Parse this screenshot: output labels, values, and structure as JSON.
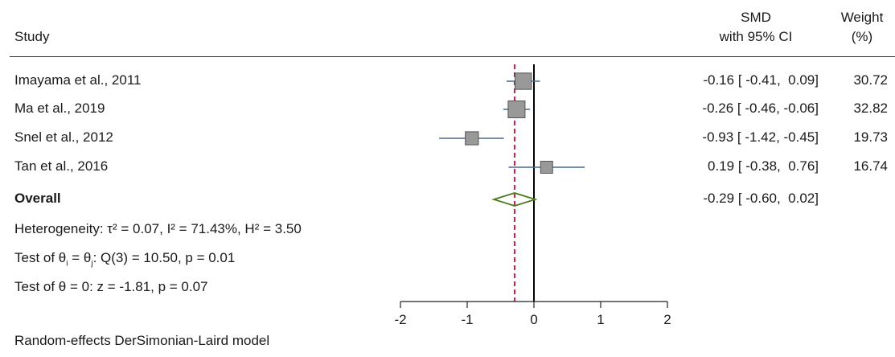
{
  "header": {
    "study_label": "Study",
    "smd_label_line1": "SMD",
    "smd_label_line2": "with 95% CI",
    "weight_label_line1": "Weight",
    "weight_label_line2": "(%)"
  },
  "stats": {
    "heterogeneity": "Heterogeneity: τ² = 0.07, I² = 71.43%, H² = 3.50",
    "test_thetas_prefix": "Test of θ",
    "test_thetas_i": "i",
    "test_thetas_mid": " = θ",
    "test_thetas_j": "j",
    "test_thetas_suffix": ": Q(3) = 10.50, p = 0.01",
    "test_theta_zero": "Test of θ = 0: z = -1.81, p = 0.07"
  },
  "footer": {
    "model": "Random-effects DerSimonian-Laird model"
  },
  "colors": {
    "ci_line": "#4a6a94",
    "marker_fill": "#999999",
    "marker_stroke": "#555555",
    "diamond_stroke": "#4c7a1c",
    "overall_line": "#c81e4a",
    "null_line": "#000000"
  },
  "chart_data": {
    "type": "forest",
    "xlim": [
      -2,
      2
    ],
    "xticks": [
      "-2",
      "-1",
      "0",
      "1",
      "2"
    ],
    "null_value": 0,
    "studies": [
      {
        "name": "Imayama et al., 2011",
        "smd": -0.16,
        "lo": -0.41,
        "hi": 0.09,
        "ci_text": "-0.16 [ -0.41,  0.09]",
        "weight": "30.72"
      },
      {
        "name": "Ma et al., 2019",
        "smd": -0.26,
        "lo": -0.46,
        "hi": -0.06,
        "ci_text": "-0.26 [ -0.46, -0.06]",
        "weight": "32.82"
      },
      {
        "name": "Snel et al., 2012",
        "smd": -0.93,
        "lo": -1.42,
        "hi": -0.45,
        "ci_text": "-0.93 [ -1.42, -0.45]",
        "weight": "19.73"
      },
      {
        "name": "Tan et al., 2016",
        "smd": 0.19,
        "lo": -0.38,
        "hi": 0.76,
        "ci_text": "0.19 [ -0.38,  0.76]",
        "weight": "16.74"
      }
    ],
    "overall": {
      "name": "Overall",
      "smd": -0.29,
      "lo": -0.6,
      "hi": 0.02,
      "ci_text": "-0.29 [ -0.60,  0.02]"
    }
  }
}
